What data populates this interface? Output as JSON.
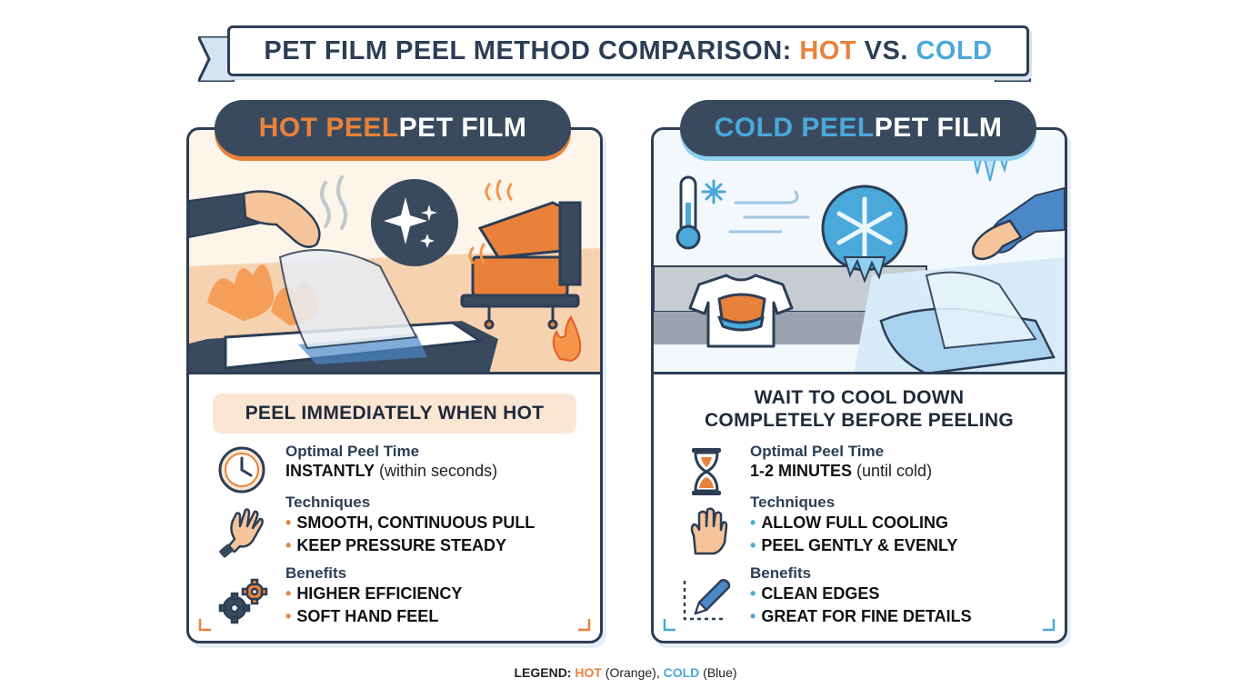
{
  "title": {
    "prefix": "PET FILM PEEL METHOD COMPARISON: ",
    "hot": "HOT",
    "middle": " VS. ",
    "cold": "COLD"
  },
  "hot_panel": {
    "title_accent": "HOT PEEL",
    "title_rest": " PET FILM",
    "headline": "PEEL IMMEDIATELY WHEN HOT",
    "peel_time_label": "Optimal Peel Time",
    "peel_time_value": "INSTANTLY",
    "peel_time_note": " (within seconds)",
    "techniques_label": "Techniques",
    "techniques": [
      "SMOOTH, CONTINUOUS PULL",
      "KEEP PRESSURE STEADY"
    ],
    "benefits_label": "Benefits",
    "benefits": [
      "HIGHER EFFICIENCY",
      "SOFT HAND FEEL"
    ],
    "icons": [
      "clock-icon",
      "hand-icon",
      "gears-icon",
      "sparkle-icon",
      "heat-press-icon",
      "flame-icon"
    ]
  },
  "cold_panel": {
    "title_accent": "COLD PEEL",
    "title_rest": " PET FILM",
    "headline_line1": "WAIT TO COOL DOWN",
    "headline_line2": "COMPLETELY BEFORE PEELING",
    "peel_time_label": "Optimal Peel Time",
    "peel_time_value": "1-2 MINUTES",
    "peel_time_note": " (until cold)",
    "techniques_label": "Techniques",
    "techniques": [
      "ALLOW FULL COOLING",
      "PEEL GENTLY & EVENLY"
    ],
    "benefits_label": "Benefits",
    "benefits": [
      "CLEAN EDGES",
      "GREAT FOR FINE DETAILS"
    ],
    "icons": [
      "hourglass-icon",
      "hand-icon",
      "pen-icon",
      "snowflake-icon",
      "thermometer-icon",
      "tshirt-icon"
    ]
  },
  "legend": {
    "label": "LEGEND: ",
    "hot": "HOT",
    "hot_note": " (Orange), ",
    "cold": "COLD",
    "cold_note": " (Blue)"
  },
  "colors": {
    "hot": "#e9813b",
    "cold": "#4aa8db",
    "ink": "#2c3e55"
  }
}
